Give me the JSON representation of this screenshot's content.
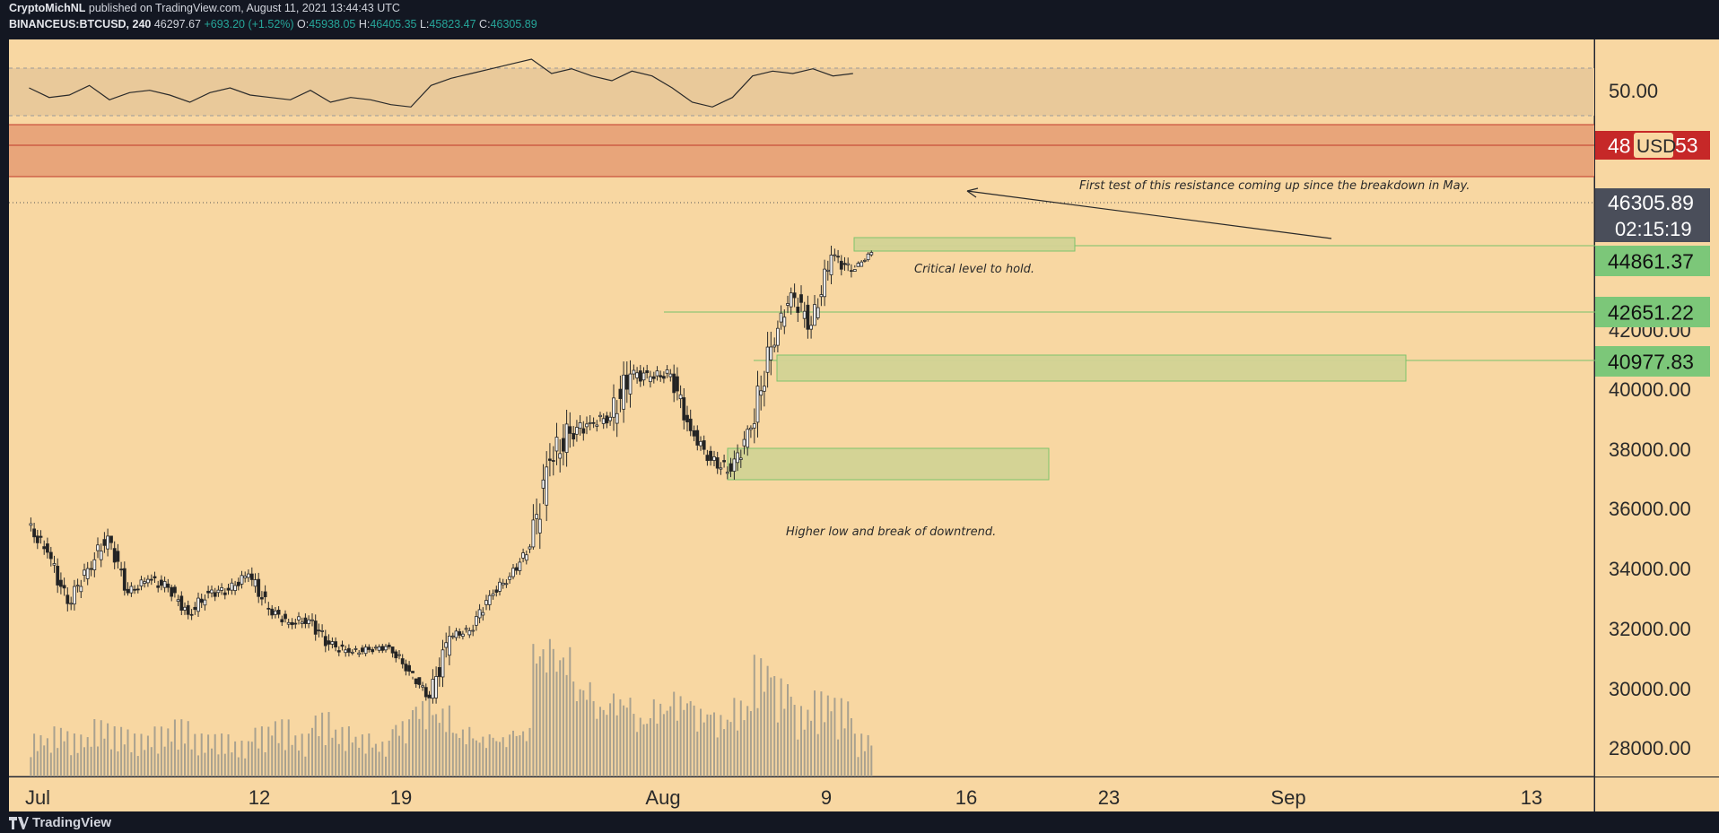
{
  "header": {
    "publisher": "CryptoMichNL",
    "published_text": "published on TradingView.com, August 11, 2021 13:44:43 UTC",
    "symbol": "BINANCEUS:BTCUSD, 240",
    "last": "46297.67",
    "change": "+693.20 (+1.52%)",
    "o_label": "O:",
    "o": "45938.05",
    "h_label": "H:",
    "h": "46405.35",
    "l_label": "L:",
    "l": "45823.47",
    "c_label": "C:",
    "c": "46305.89"
  },
  "footer": {
    "brand": "TradingView"
  },
  "colors": {
    "background": "#f8d7a2",
    "resistance_fill": "#e8a57a",
    "resistance_line": "#c0392b",
    "support_zone": "#d3d395",
    "support_zone_border": "#78c26a",
    "price_label_green": "#7cc779",
    "price_label_red": "#c62828",
    "price_label_dark": "#4a4e5a",
    "candle_body": "#2a2a2a",
    "volume_bar": "#a9a18f"
  },
  "chart_data": {
    "type": "candlestick",
    "symbol": "BINANCEUS:BTCUSD",
    "interval": "240",
    "x_ticks": [
      "Jul",
      "12",
      "19",
      "Aug",
      "9",
      "16",
      "23",
      "Sep",
      "13"
    ],
    "y_ticks": [
      "28000.00",
      "30000.00",
      "32000.00",
      "34000.00",
      "36000.00",
      "38000.00",
      "40000.00",
      "42000.00"
    ],
    "ylim": [
      27600,
      49800
    ],
    "price_series": {
      "name": "BTCUSD",
      "x": [
        "2021-07-01",
        "2021-07-02",
        "2021-07-03",
        "2021-07-04",
        "2021-07-05",
        "2021-07-06",
        "2021-07-07",
        "2021-07-08",
        "2021-07-09",
        "2021-07-10",
        "2021-07-11",
        "2021-07-12",
        "2021-07-13",
        "2021-07-14",
        "2021-07-15",
        "2021-07-16",
        "2021-07-17",
        "2021-07-18",
        "2021-07-19",
        "2021-07-20",
        "2021-07-21",
        "2021-07-22",
        "2021-07-23",
        "2021-07-24",
        "2021-07-25",
        "2021-07-26",
        "2021-07-27",
        "2021-07-28",
        "2021-07-29",
        "2021-07-30",
        "2021-07-31",
        "2021-08-01",
        "2021-08-02",
        "2021-08-03",
        "2021-08-04",
        "2021-08-05",
        "2021-08-06",
        "2021-08-07",
        "2021-08-08",
        "2021-08-09",
        "2021-08-10",
        "2021-08-11"
      ],
      "close": [
        35200,
        33300,
        34600,
        35800,
        33700,
        34200,
        33900,
        32900,
        33700,
        33800,
        34400,
        33100,
        32600,
        32700,
        31800,
        31500,
        31600,
        31700,
        30800,
        29800,
        32100,
        32300,
        33600,
        34300,
        35400,
        38600,
        39600,
        40000,
        40200,
        41800,
        41700,
        41800,
        39700,
        38600,
        38200,
        39800,
        42800,
        44800,
        43600,
        46200,
        45600,
        46300
      ],
      "high": [
        36500,
        35400,
        35000,
        36300,
        35800,
        34800,
        34900,
        34000,
        34300,
        34600,
        35000,
        34700,
        33400,
        33100,
        33200,
        32300,
        32000,
        32000,
        31600,
        30500,
        32700,
        32800,
        33800,
        34600,
        35500,
        40200,
        40900,
        40800,
        40400,
        42500,
        42400,
        42500,
        42400,
        39900,
        39400,
        39900,
        43500,
        45000,
        45700,
        46700,
        46500,
        46405
      ],
      "low": [
        34600,
        33000,
        33000,
        34000,
        33600,
        33500,
        33400,
        32500,
        32600,
        33200,
        33600,
        32700,
        32200,
        31700,
        31200,
        31000,
        31100,
        31200,
        30200,
        29300,
        29600,
        31800,
        32100,
        33300,
        34200,
        35300,
        36500,
        38500,
        38800,
        38300,
        40600,
        41000,
        39500,
        38300,
        37600,
        37300,
        38800,
        42600,
        42800,
        43800,
        44600,
        45823
      ],
      "volume_note": "histogram under price; relative heights"
    },
    "volume_rel": [
      0.3,
      0.35,
      0.3,
      0.4,
      0.35,
      0.3,
      0.35,
      0.4,
      0.3,
      0.3,
      0.25,
      0.35,
      0.4,
      0.3,
      0.45,
      0.35,
      0.3,
      0.25,
      0.4,
      0.55,
      0.5,
      0.35,
      0.3,
      0.3,
      0.35,
      1.0,
      0.95,
      0.7,
      0.55,
      0.6,
      0.45,
      0.55,
      0.6,
      0.5,
      0.45,
      0.55,
      0.85,
      0.7,
      0.5,
      0.6,
      0.55,
      0.3
    ],
    "rsi": {
      "levels": [
        "50.00"
      ],
      "values": [
        52,
        48,
        49,
        53,
        47,
        50,
        51,
        49,
        46,
        50,
        52,
        49,
        48,
        47,
        51,
        46,
        48,
        47,
        45,
        44,
        53,
        56,
        58,
        60,
        62,
        64,
        58,
        60,
        57,
        55,
        59,
        57,
        52,
        46,
        44,
        48,
        57,
        59,
        58,
        60,
        57,
        58
      ]
    },
    "resistance_zone": {
      "from": 47300,
      "to": 49000,
      "line": 48500
    },
    "support_zones": [
      {
        "from": 44660,
        "to": 45180,
        "x_start": "2021-08-10",
        "x_end": "2021-08-22"
      },
      {
        "from": 40300,
        "to": 41200,
        "x_start": "2021-08-07",
        "x_end": "2021-09-08"
      },
      {
        "from": 37100,
        "to": 38100,
        "x_start": "2021-08-05",
        "x_end": "2021-08-19"
      }
    ],
    "level_lines": [
      44861.37,
      42651.22,
      40977.83
    ],
    "price_labels": [
      {
        "text": "48",
        "suffix": "53",
        "badge": "USD",
        "kind": "red"
      },
      {
        "text": "46305.89",
        "kind": "dark"
      },
      {
        "text": "02:15:19",
        "kind": "dark"
      },
      {
        "text": "44861.37",
        "kind": "green"
      },
      {
        "text": "42651.22",
        "kind": "green"
      },
      {
        "text": "40977.83",
        "kind": "green"
      }
    ],
    "annotations": [
      {
        "text": "First test of this resistance coming up since the breakdown in May."
      },
      {
        "text": "Critical level to hold."
      },
      {
        "text": "Higher low and break of downtrend."
      }
    ]
  }
}
